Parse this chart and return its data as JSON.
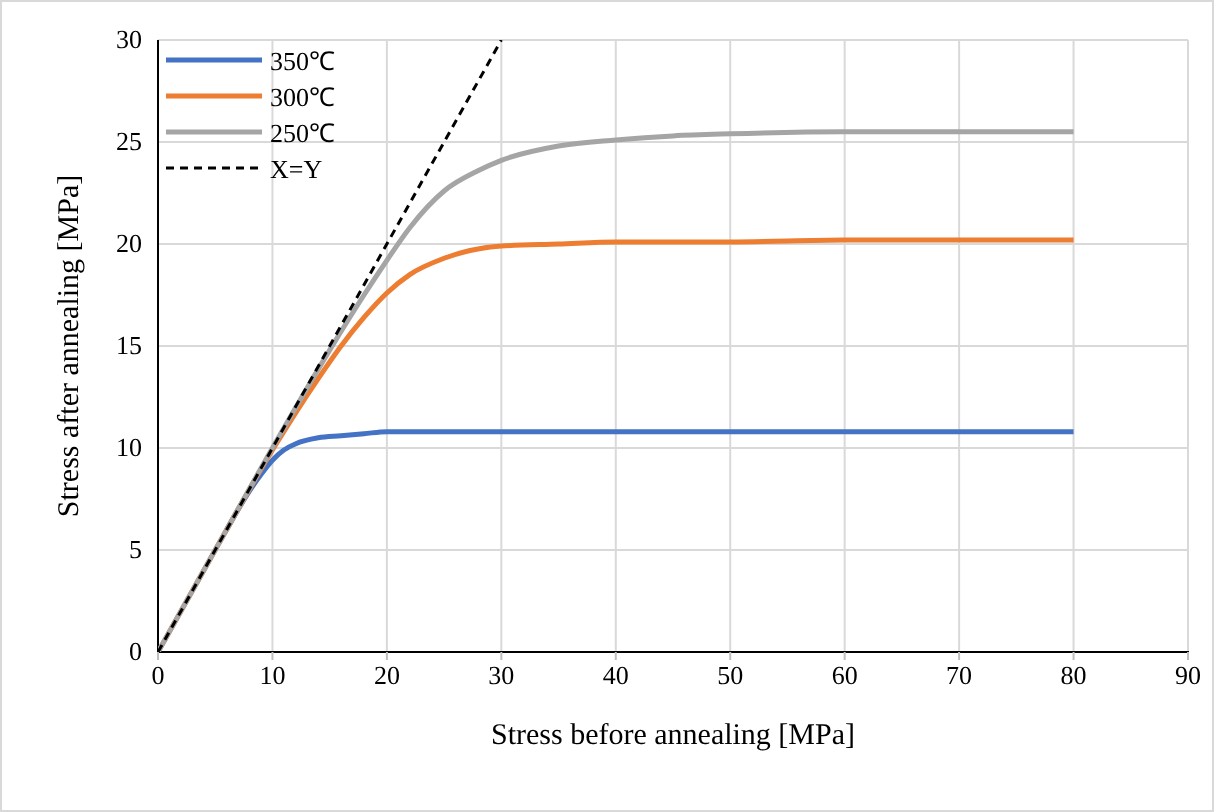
{
  "chart_data": {
    "type": "line",
    "xlabel": "Stress before annealing  [MPa]",
    "ylabel": "Stress after annealing  [MPa]",
    "xlim": [
      0,
      90
    ],
    "xticks": [
      0,
      10,
      20,
      30,
      40,
      50,
      60,
      70,
      80,
      90
    ],
    "ylim": [
      0,
      30
    ],
    "yticks": [
      0,
      5,
      10,
      15,
      20,
      25,
      30
    ],
    "grid": true,
    "legend": "top left",
    "series": [
      {
        "name": "350℃",
        "color": "#4472c4",
        "x": [
          6,
          8,
          9,
          10,
          11,
          12,
          14,
          16,
          18,
          20,
          25,
          30,
          40,
          50,
          60,
          70,
          80
        ],
        "values": [
          6,
          7.9,
          8.7,
          9.4,
          9.9,
          10.2,
          10.5,
          10.6,
          10.7,
          10.8,
          10.8,
          10.8,
          10.8,
          10.8,
          10.8,
          10.8,
          10.8
        ]
      },
      {
        "name": "300℃",
        "color": "#ed7d31",
        "x": [
          0,
          5,
          10,
          12,
          14,
          16,
          18,
          20,
          22,
          25,
          30,
          35,
          40,
          50,
          60,
          70,
          80
        ],
        "values": [
          0,
          5,
          9.9,
          11.7,
          13.4,
          15.0,
          16.4,
          17.6,
          18.5,
          19.3,
          19.9,
          20.0,
          20.1,
          20.1,
          20.2,
          20.2,
          20.2
        ]
      },
      {
        "name": "250℃",
        "color": "#a5a5a5",
        "x": [
          0,
          5,
          10,
          15,
          18,
          20,
          22,
          25,
          28,
          30,
          35,
          40,
          45,
          50,
          60,
          70,
          80
        ],
        "values": [
          0,
          5,
          10,
          14.8,
          17.5,
          19.2,
          20.8,
          22.6,
          23.6,
          24.1,
          24.8,
          25.1,
          25.3,
          25.4,
          25.5,
          25.5,
          25.5
        ]
      },
      {
        "name": "X=Y",
        "color": "#000000",
        "line_style": "dashed",
        "x": [
          0,
          30
        ],
        "values": [
          0,
          30
        ]
      }
    ]
  }
}
